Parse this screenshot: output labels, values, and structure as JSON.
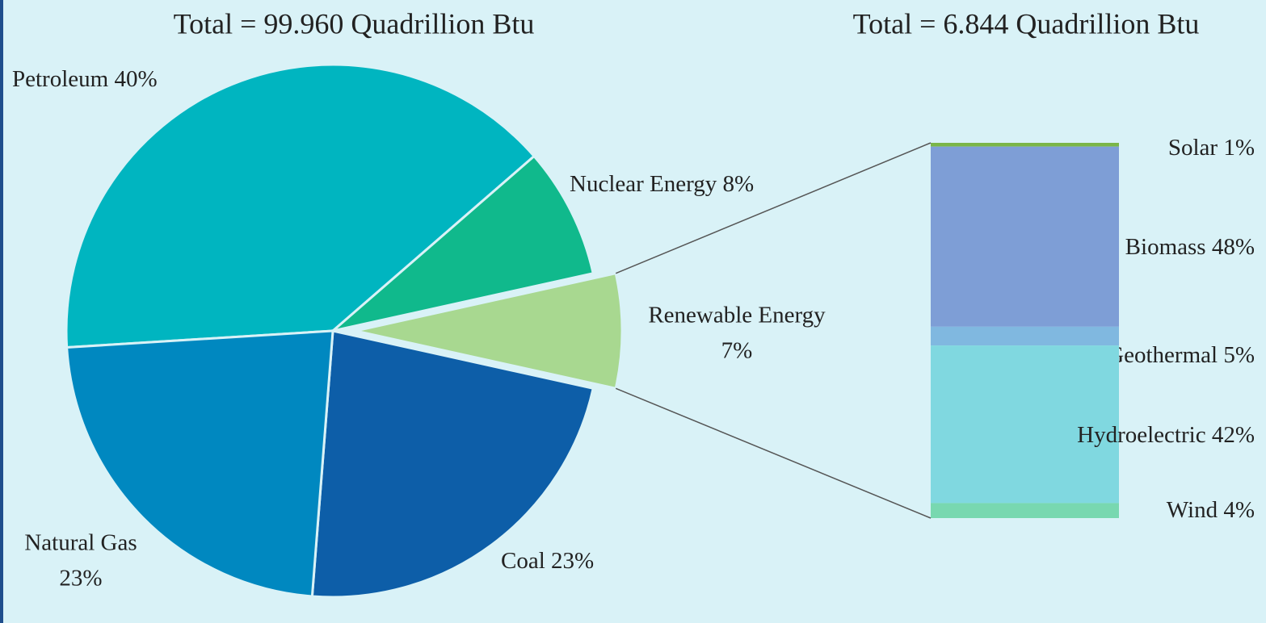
{
  "chart_data": [
    {
      "type": "pie",
      "title": "Total = 99.960 Quadrillion Btu",
      "categories": [
        "Petroleum",
        "Nuclear Energy",
        "Renewable Energy",
        "Coal",
        "Natural Gas"
      ],
      "values": [
        40,
        8,
        7,
        23,
        23
      ],
      "value_labels": [
        "40%",
        "8%",
        "7%",
        "23%",
        "23%"
      ],
      "colors": [
        "#00b5c0",
        "#10b98c",
        "#a8d890",
        "#0d5ea8",
        "#0088c0"
      ]
    },
    {
      "type": "stacked_bar",
      "title": "Total = 6.844 Quadrillion Btu",
      "categories": [
        "Solar",
        "Biomass",
        "Geothermal",
        "Hydroelectric",
        "Wind"
      ],
      "values": [
        1,
        48,
        5,
        42,
        4
      ],
      "value_labels": [
        "1%",
        "48%",
        "5%",
        "42%",
        "4%"
      ],
      "colors": [
        "#7ab648",
        "#7e9ed6",
        "#80b8e0",
        "#80d8e0",
        "#78d8b0"
      ]
    }
  ]
}
